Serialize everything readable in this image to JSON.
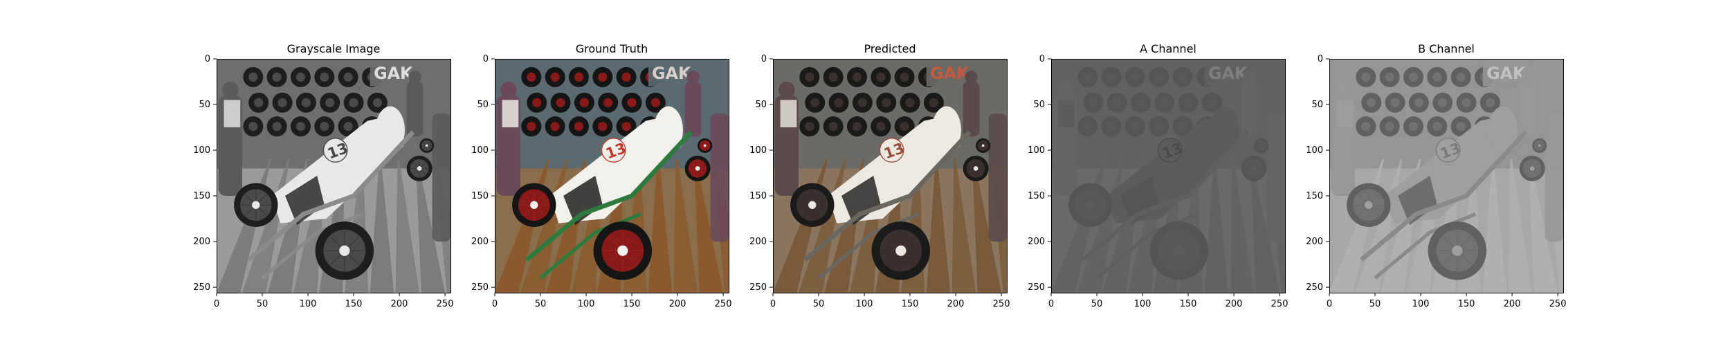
{
  "panels": [
    {
      "title": "Grayscale Image",
      "style": "gray"
    },
    {
      "title": "Ground Truth",
      "style": "color"
    },
    {
      "title": "Predicted",
      "style": "color-muted"
    },
    {
      "title": "A Channel",
      "style": "a-channel"
    },
    {
      "title": "B Channel",
      "style": "b-channel"
    }
  ],
  "axes": {
    "xlim": [
      0,
      256
    ],
    "ylim": [
      0,
      256
    ],
    "x_ticks": [
      "0",
      "50",
      "100",
      "150",
      "200",
      "250"
    ],
    "y_ticks": [
      "0",
      "50",
      "100",
      "150",
      "200",
      "250"
    ]
  },
  "scene_text": {
    "car_number": "13",
    "sign": "GAK"
  }
}
